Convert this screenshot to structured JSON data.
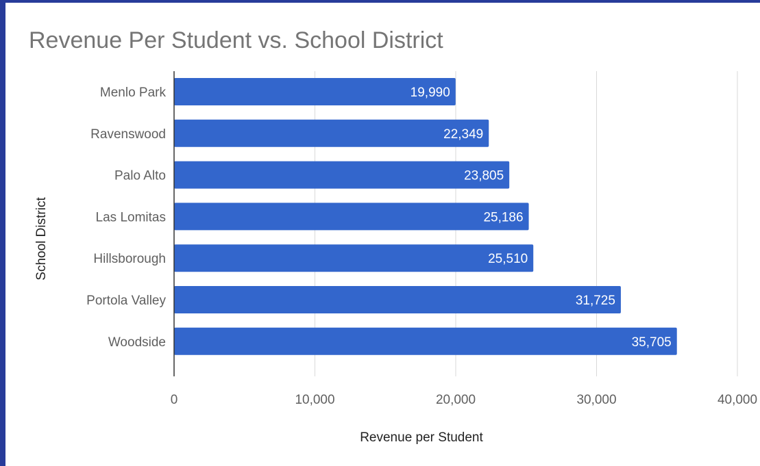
{
  "chart_data": {
    "type": "bar",
    "orientation": "horizontal",
    "title": "Revenue Per Student vs. School District",
    "xlabel": "Revenue per Student",
    "ylabel": "School District",
    "categories": [
      "Menlo Park",
      "Ravenswood",
      "Palo Alto",
      "Las Lomitas",
      "Hillsborough",
      "Portola Valley",
      "Woodside"
    ],
    "values": [
      19990,
      22349,
      23805,
      25186,
      25510,
      31725,
      35705
    ],
    "value_labels": [
      "19,990",
      "22,349",
      "23,805",
      "25,186",
      "25,510",
      "31,725",
      "35,705"
    ],
    "xlim": [
      0,
      40000
    ],
    "x_ticks": [
      0,
      10000,
      20000,
      30000,
      40000
    ],
    "x_tick_labels": [
      "0",
      "10,000",
      "20,000",
      "30,000",
      "40,000"
    ],
    "grid": true,
    "legend": "none",
    "bar_color": "#3366cc"
  }
}
